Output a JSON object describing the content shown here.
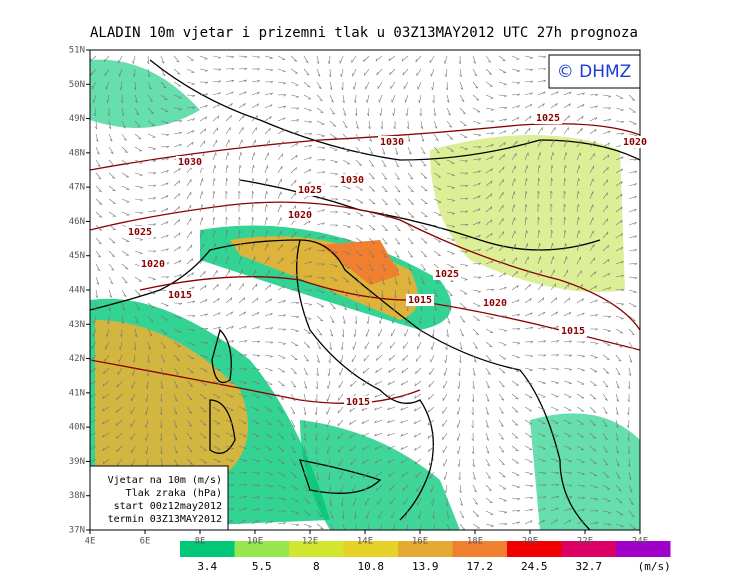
{
  "title": "ALADIN 10m vjetar i prizemni tlak u 03Z13MAY2012 UTC 27h prognoza",
  "logo": "© DHMZ",
  "lat_labels": [
    "37N",
    "38N",
    "39N",
    "40N",
    "41N",
    "42N",
    "43N",
    "44N",
    "45N",
    "46N",
    "47N",
    "48N",
    "49N",
    "50N",
    "51N"
  ],
  "lon_labels": [
    "4E",
    "6E",
    "8E",
    "10E",
    "12E",
    "14E",
    "16E",
    "18E",
    "20E",
    "22E",
    "24E"
  ],
  "isobar_labels": [
    "1030",
    "1030",
    "1025",
    "1030",
    "1020",
    "1025",
    "1020",
    "1025",
    "1020",
    "1015",
    "1025",
    "1015",
    "1020",
    "1015",
    "1015"
  ],
  "legend": [
    "Vjetar na 10m (m/s)",
    "Tlak zraka (hPa)",
    "start 00z12may2012",
    "termin 03Z13MAY2012"
  ],
  "colorbar": {
    "values": [
      3.4,
      5.5,
      8,
      10.8,
      13.9,
      17.2,
      24.5,
      32.7
    ],
    "unit": "(m/s)",
    "colors": [
      "#00c878",
      "#96e650",
      "#d2e632",
      "#e6d228",
      "#e6aa32",
      "#f08030",
      "#f00000",
      "#dc0064",
      "#a000c8"
    ]
  }
}
